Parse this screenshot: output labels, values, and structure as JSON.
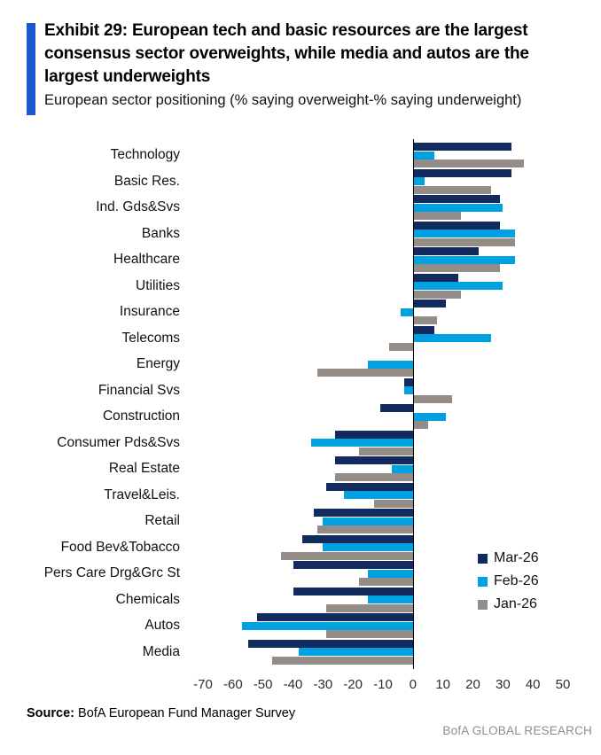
{
  "header": {
    "exhibit_title": "Exhibit 29: European tech and basic resources are the largest consensus sector overweights, while media and autos are the largest underweights",
    "subtitle": "European sector positioning (% saying overweight-% saying underweight)",
    "accent_color": "#1b59d3"
  },
  "chart_data": {
    "type": "bar",
    "orientation": "horizontal",
    "title": "European sector positioning (% saying overweight-% saying underweight)",
    "categories": [
      "Technology",
      "Basic Res.",
      "Ind. Gds&Svs",
      "Banks",
      "Healthcare",
      "Utilities",
      "Insurance",
      "Telecoms",
      "Energy",
      "Financial Svs",
      "Construction",
      "Consumer Pds&Svs",
      "Real Estate",
      "Travel&Leis.",
      "Retail",
      "Food Bev&Tobacco",
      "Pers Care Drg&Grc St",
      "Chemicals",
      "Autos",
      "Media"
    ],
    "series": [
      {
        "name": "Mar-26",
        "color": "#132a5e",
        "values": [
          33,
          33,
          29,
          29,
          22,
          15,
          11,
          7,
          0,
          -3,
          -11,
          -26,
          -26,
          -29,
          -33,
          -37,
          -40,
          -40,
          -52,
          -55
        ]
      },
      {
        "name": "Feb-26",
        "color": "#00a1e0",
        "values": [
          7,
          4,
          30,
          34,
          34,
          30,
          -4,
          26,
          -15,
          -3,
          11,
          -34,
          -7,
          -23,
          -30,
          -30,
          -15,
          -15,
          -57,
          -38
        ]
      },
      {
        "name": "Jan-26",
        "color": "#948c87",
        "values": [
          37,
          26,
          16,
          34,
          29,
          16,
          8,
          -8,
          -32,
          13,
          5,
          -18,
          -26,
          -13,
          -32,
          -44,
          -18,
          -29,
          -29,
          -47
        ]
      }
    ],
    "xlim": [
      -70,
      50
    ],
    "x_ticks": [
      -70,
      -60,
      -50,
      -40,
      -30,
      -20,
      -10,
      0,
      10,
      20,
      30,
      40,
      50
    ],
    "grid": false,
    "legend_position": "inside-bottom-right",
    "axis_line_color": "#000000"
  },
  "footer": {
    "source_label": "Source:",
    "source_text": "BofA European Fund Manager Survey",
    "brand": "BofA GLOBAL RESEARCH"
  }
}
